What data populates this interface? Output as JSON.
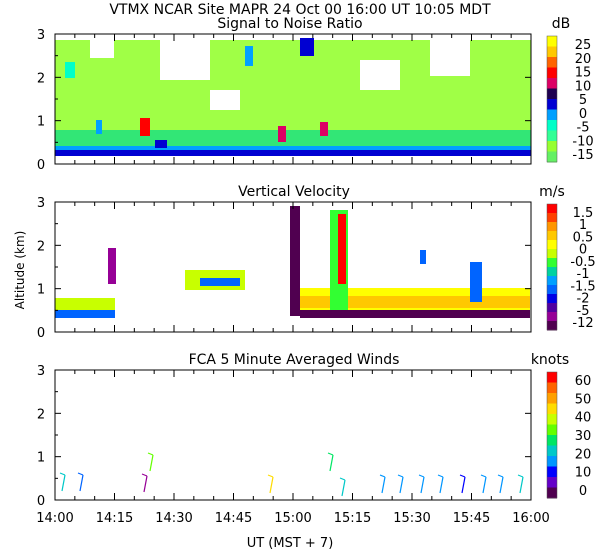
{
  "header": "VTMX   NCAR Site   MAPR 24 Oct 00   16:00 UT   10:05   MDT",
  "ylabel": "Altitude (km)",
  "xlabel": "UT   (MST + 7)",
  "chart_data": [
    {
      "type": "heatmap",
      "title": "Signal to Noise Ratio",
      "unit": "dB",
      "xlim": [
        0,
        120
      ],
      "ylim": [
        0,
        3
      ],
      "yticks": [
        "0",
        "1",
        "2",
        "3"
      ],
      "colorbar": {
        "labels": [
          "25",
          "20",
          "15",
          "10",
          "5",
          "0",
          "-5",
          "-10",
          "-15"
        ],
        "colors": [
          "#ffff00",
          "#ffc800",
          "#ff6400",
          "#ff0000",
          "#dc0064",
          "#1e0050",
          "#0000d2",
          "#00a0ff",
          "#00ffc8",
          "#32ff96",
          "#96ff32",
          "#64f064"
        ]
      }
    },
    {
      "type": "heatmap",
      "title": "Vertical Velocity",
      "unit": "m/s",
      "xlim": [
        0,
        120
      ],
      "ylim": [
        0,
        3
      ],
      "yticks": [
        "0",
        "1",
        "2",
        "3"
      ],
      "colorbar": {
        "labels": [
          "1.5",
          "1",
          "0.5",
          "0",
          "-0.5",
          "-1",
          "-1.5",
          "-2",
          "-5",
          "-12"
        ],
        "colors": [
          "#ff0000",
          "#ff4000",
          "#ff9600",
          "#ffc800",
          "#ffff00",
          "#c8ff00",
          "#32ff32",
          "#00d2a0",
          "#00a0ff",
          "#0064ff",
          "#0000e6",
          "#5000a0",
          "#960096",
          "#500050"
        ]
      }
    },
    {
      "type": "scatter",
      "title": "FCA 5 Minute Averaged Winds",
      "unit": "knots",
      "xlim": [
        0,
        120
      ],
      "ylim": [
        0,
        3
      ],
      "yticks": [
        "0",
        "1",
        "2",
        "3"
      ],
      "xticks": [
        "14:00",
        "14:15",
        "14:30",
        "14:45",
        "15:00",
        "15:15",
        "15:30",
        "15:45",
        "16:00"
      ],
      "colorbar": {
        "labels": [
          "60",
          "50",
          "40",
          "30",
          "20",
          "10",
          "0"
        ],
        "colors": [
          "#ff0000",
          "#ff6400",
          "#ffa000",
          "#ffdc00",
          "#c8ff00",
          "#64ff00",
          "#00e664",
          "#00c8c8",
          "#0096ff",
          "#0000ff",
          "#6400c8",
          "#500050"
        ]
      }
    }
  ]
}
